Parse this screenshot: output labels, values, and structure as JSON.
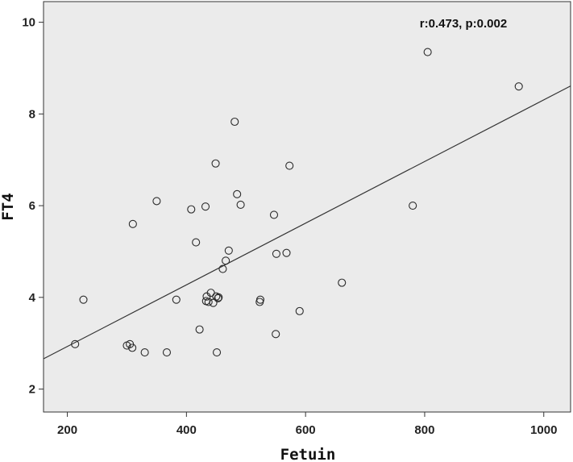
{
  "chart_data": {
    "type": "scatter",
    "title": "",
    "xlabel": "Fetuin",
    "ylabel": "FT4",
    "xlim": [
      160,
      1045
    ],
    "ylim": [
      1.5,
      10.45
    ],
    "xticks": [
      200,
      400,
      600,
      800,
      1000
    ],
    "yticks": [
      2,
      4,
      6,
      8,
      10
    ],
    "grid": false,
    "annotation": "r:0.473, p:0.002",
    "series": [
      {
        "points": [
          {
            "x": 213,
            "y": 2.98
          },
          {
            "x": 227,
            "y": 3.95
          },
          {
            "x": 300,
            "y": 2.95
          },
          {
            "x": 305,
            "y": 2.98
          },
          {
            "x": 309,
            "y": 2.9
          },
          {
            "x": 310,
            "y": 5.6
          },
          {
            "x": 330,
            "y": 2.8
          },
          {
            "x": 350,
            "y": 6.1
          },
          {
            "x": 367,
            "y": 2.8
          },
          {
            "x": 383,
            "y": 3.95
          },
          {
            "x": 408,
            "y": 5.92
          },
          {
            "x": 416,
            "y": 5.2
          },
          {
            "x": 422,
            "y": 3.3
          },
          {
            "x": 432,
            "y": 5.98
          },
          {
            "x": 433,
            "y": 3.92
          },
          {
            "x": 434,
            "y": 4.02
          },
          {
            "x": 437,
            "y": 3.9
          },
          {
            "x": 441,
            "y": 4.1
          },
          {
            "x": 445,
            "y": 3.88
          },
          {
            "x": 449,
            "y": 6.92
          },
          {
            "x": 450,
            "y": 4.02
          },
          {
            "x": 451,
            "y": 2.8
          },
          {
            "x": 453,
            "y": 3.98
          },
          {
            "x": 454,
            "y": 4.0
          },
          {
            "x": 461,
            "y": 4.62
          },
          {
            "x": 466,
            "y": 4.8
          },
          {
            "x": 471,
            "y": 5.02
          },
          {
            "x": 481,
            "y": 7.83
          },
          {
            "x": 485,
            "y": 6.25
          },
          {
            "x": 491,
            "y": 6.02
          },
          {
            "x": 523,
            "y": 3.9
          },
          {
            "x": 524,
            "y": 3.95
          },
          {
            "x": 547,
            "y": 5.8
          },
          {
            "x": 550,
            "y": 3.2
          },
          {
            "x": 551,
            "y": 4.95
          },
          {
            "x": 568,
            "y": 4.97
          },
          {
            "x": 573,
            "y": 6.87
          },
          {
            "x": 590,
            "y": 3.7
          },
          {
            "x": 661,
            "y": 4.32
          },
          {
            "x": 780,
            "y": 6.0
          },
          {
            "x": 805,
            "y": 9.35
          },
          {
            "x": 958,
            "y": 8.6
          }
        ]
      }
    ],
    "fit_line": {
      "x": [
        160,
        1045
      ],
      "y": [
        2.66,
        8.61
      ]
    },
    "colors": {
      "plot_background": "#ebebeb",
      "frame": "#333333",
      "marker_stroke": "#2b2b2b",
      "fit_line": "#333333"
    }
  }
}
